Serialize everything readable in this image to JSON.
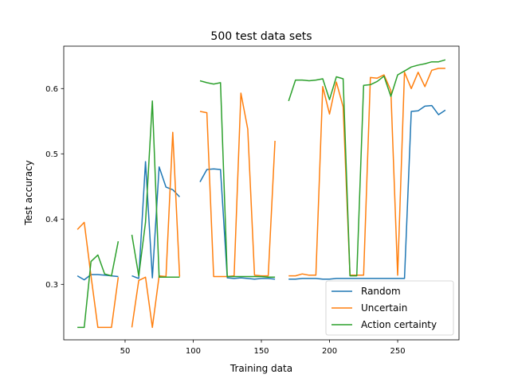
{
  "chart_data": {
    "type": "line",
    "title": "500 test data sets",
    "xlabel": "Training data",
    "ylabel": "Test accuracy",
    "xlim": [
      5,
      295
    ],
    "ylim": [
      0.215,
      0.665
    ],
    "xticks": [
      50,
      100,
      150,
      200,
      250
    ],
    "yticks": [
      0.3,
      0.4,
      0.5,
      0.6
    ],
    "grid": false,
    "legend": "lower-right",
    "series": [
      {
        "name": "Random",
        "color": "#1f77b4",
        "segments": [
          [
            [
              15,
              0.313
            ],
            [
              20,
              0.307
            ],
            [
              25,
              0.315
            ],
            [
              30,
              0.315
            ],
            [
              35,
              0.314
            ],
            [
              40,
              0.313
            ],
            [
              45,
              0.312
            ]
          ],
          [
            [
              55,
              0.313
            ],
            [
              60,
              0.309
            ],
            [
              65,
              0.488
            ],
            [
              70,
              0.31
            ],
            [
              75,
              0.48
            ],
            [
              80,
              0.449
            ],
            [
              85,
              0.445
            ],
            [
              90,
              0.434
            ]
          ],
          [
            [
              105,
              0.457
            ],
            [
              110,
              0.476
            ],
            [
              115,
              0.477
            ],
            [
              120,
              0.476
            ],
            [
              125,
              0.31
            ],
            [
              130,
              0.309
            ],
            [
              135,
              0.31
            ],
            [
              140,
              0.309
            ],
            [
              145,
              0.308
            ],
            [
              150,
              0.309
            ],
            [
              155,
              0.309
            ],
            [
              160,
              0.308
            ]
          ],
          [
            [
              170,
              0.308
            ],
            [
              175,
              0.308
            ],
            [
              180,
              0.309
            ],
            [
              185,
              0.309
            ],
            [
              190,
              0.309
            ],
            [
              195,
              0.308
            ],
            [
              200,
              0.308
            ],
            [
              205,
              0.309
            ],
            [
              210,
              0.309
            ],
            [
              215,
              0.309
            ],
            [
              220,
              0.309
            ],
            [
              225,
              0.309
            ],
            [
              230,
              0.309
            ],
            [
              235,
              0.309
            ],
            [
              240,
              0.309
            ],
            [
              245,
              0.309
            ],
            [
              250,
              0.309
            ],
            [
              255,
              0.309
            ],
            [
              260,
              0.565
            ],
            [
              265,
              0.566
            ],
            [
              270,
              0.573
            ],
            [
              275,
              0.574
            ],
            [
              280,
              0.56
            ],
            [
              285,
              0.567
            ]
          ]
        ]
      },
      {
        "name": "Uncertain",
        "color": "#ff7f0e",
        "segments": [
          [
            [
              15,
              0.384
            ],
            [
              20,
              0.395
            ],
            [
              25,
              0.313
            ],
            [
              30,
              0.234
            ],
            [
              35,
              0.234
            ],
            [
              40,
              0.234
            ],
            [
              45,
              0.311
            ]
          ],
          [
            [
              55,
              0.234
            ],
            [
              60,
              0.306
            ],
            [
              65,
              0.311
            ],
            [
              70,
              0.234
            ],
            [
              75,
              0.313
            ],
            [
              80,
              0.312
            ],
            [
              85,
              0.533
            ],
            [
              90,
              0.312
            ]
          ],
          [
            [
              105,
              0.565
            ],
            [
              110,
              0.563
            ],
            [
              115,
              0.312
            ],
            [
              120,
              0.312
            ],
            [
              125,
              0.312
            ],
            [
              130,
              0.313
            ],
            [
              135,
              0.593
            ],
            [
              140,
              0.538
            ],
            [
              145,
              0.314
            ],
            [
              150,
              0.313
            ],
            [
              155,
              0.313
            ],
            [
              160,
              0.52
            ]
          ],
          [
            [
              170,
              0.313
            ],
            [
              175,
              0.313
            ],
            [
              180,
              0.316
            ],
            [
              185,
              0.314
            ],
            [
              190,
              0.314
            ],
            [
              195,
              0.603
            ],
            [
              200,
              0.561
            ],
            [
              205,
              0.61
            ],
            [
              210,
              0.572
            ],
            [
              215,
              0.314
            ],
            [
              220,
              0.314
            ],
            [
              225,
              0.314
            ],
            [
              230,
              0.617
            ],
            [
              235,
              0.616
            ],
            [
              240,
              0.621
            ],
            [
              245,
              0.597
            ],
            [
              250,
              0.314
            ],
            [
              255,
              0.625
            ],
            [
              260,
              0.6
            ],
            [
              265,
              0.625
            ],
            [
              270,
              0.603
            ],
            [
              275,
              0.628
            ],
            [
              280,
              0.631
            ],
            [
              285,
              0.631
            ]
          ]
        ]
      },
      {
        "name": "Action certainty",
        "color": "#2ca02c",
        "segments": [
          [
            [
              15,
              0.234
            ],
            [
              20,
              0.234
            ],
            [
              25,
              0.335
            ],
            [
              30,
              0.345
            ],
            [
              35,
              0.316
            ],
            [
              40,
              0.313
            ],
            [
              45,
              0.366
            ]
          ],
          [
            [
              55,
              0.376
            ],
            [
              60,
              0.313
            ],
            [
              65,
              0.395
            ],
            [
              70,
              0.581
            ],
            [
              75,
              0.311
            ],
            [
              80,
              0.311
            ],
            [
              85,
              0.311
            ],
            [
              90,
              0.311
            ]
          ],
          [
            [
              105,
              0.612
            ],
            [
              110,
              0.609
            ],
            [
              115,
              0.607
            ],
            [
              120,
              0.609
            ],
            [
              125,
              0.312
            ],
            [
              130,
              0.312
            ],
            [
              135,
              0.312
            ],
            [
              140,
              0.312
            ],
            [
              145,
              0.312
            ],
            [
              150,
              0.312
            ],
            [
              155,
              0.311
            ],
            [
              160,
              0.311
            ]
          ],
          [
            [
              170,
              0.581
            ],
            [
              175,
              0.613
            ],
            [
              180,
              0.613
            ],
            [
              185,
              0.612
            ],
            [
              190,
              0.613
            ],
            [
              195,
              0.615
            ],
            [
              200,
              0.583
            ],
            [
              205,
              0.618
            ],
            [
              210,
              0.615
            ],
            [
              215,
              0.313
            ],
            [
              220,
              0.313
            ],
            [
              225,
              0.605
            ],
            [
              230,
              0.606
            ],
            [
              235,
              0.611
            ],
            [
              240,
              0.619
            ],
            [
              245,
              0.588
            ],
            [
              250,
              0.621
            ],
            [
              255,
              0.627
            ],
            [
              260,
              0.633
            ],
            [
              265,
              0.636
            ],
            [
              270,
              0.638
            ],
            [
              275,
              0.641
            ],
            [
              280,
              0.641
            ],
            [
              285,
              0.644
            ]
          ]
        ]
      }
    ]
  }
}
